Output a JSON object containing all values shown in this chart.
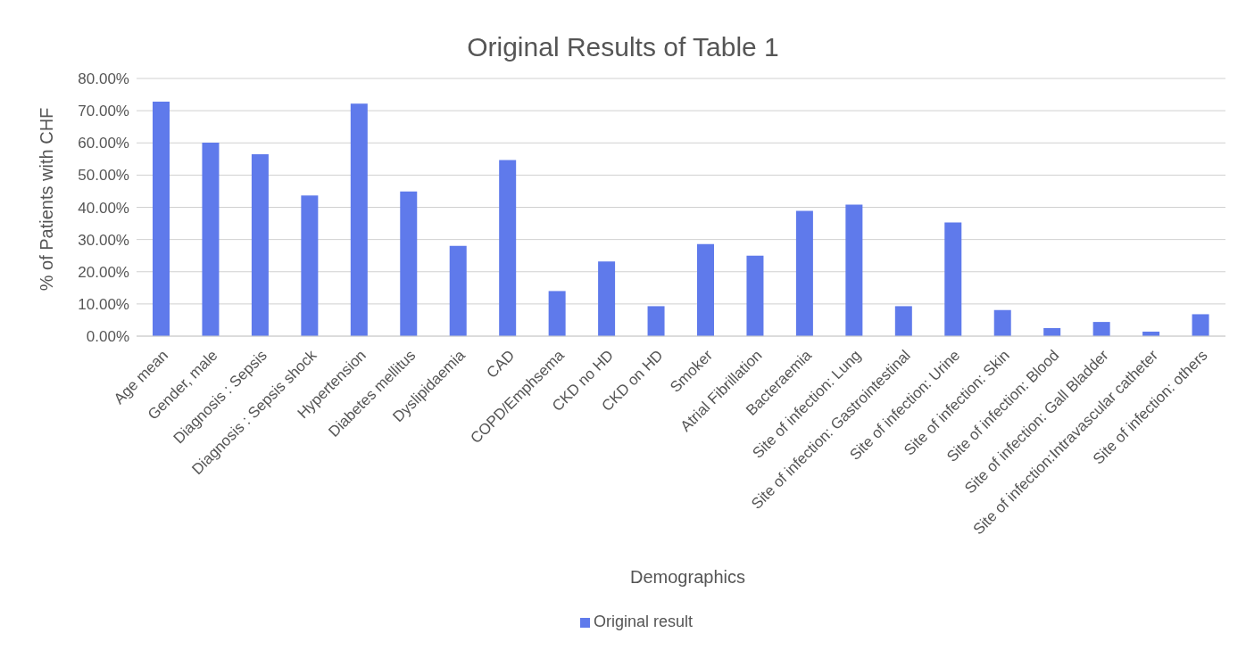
{
  "chart_data": {
    "type": "bar",
    "title": "Original Results of Table 1",
    "xlabel": "Demographics",
    "ylabel": "% of Patients with CHF",
    "categories": [
      "Age mean",
      "Gender, male",
      "Diagnosis : Sepsis",
      "Diagnosis : Sepsis shock",
      "Hypertension",
      "Diabetes mellitus",
      "Dyslipidaemia",
      "CAD",
      "COPD/Emphsema",
      "CKD no HD",
      "CKD on HD",
      "Smoker",
      "Atrial Fibrillation",
      "Bacteraemia",
      "Site of infection: Lung",
      "Site of infection: Gastrointestinal",
      "Site of infection: Urine",
      "Site of infection: Skin",
      "Site of infection: Blood",
      "Site of infection: Gall Bladder",
      "Site of infection:Intravascular catheter",
      "Site of infection: others"
    ],
    "series": [
      {
        "name": "Original result",
        "color": "#5f7aeb",
        "values": [
          72.8,
          60.1,
          56.5,
          43.7,
          72.2,
          44.9,
          28.0,
          54.7,
          14.0,
          23.2,
          9.3,
          28.6,
          25.0,
          38.9,
          40.8,
          9.3,
          35.3,
          8.1,
          2.5,
          4.4,
          1.4,
          6.8
        ]
      }
    ],
    "ylim": [
      0,
      80
    ],
    "yticks": [
      {
        "value": 0,
        "label": "0.00%"
      },
      {
        "value": 10,
        "label": "10.00%"
      },
      {
        "value": 20,
        "label": "20.00%"
      },
      {
        "value": 30,
        "label": "30.00%"
      },
      {
        "value": 40,
        "label": "40.00%"
      },
      {
        "value": 50,
        "label": "50.00%"
      },
      {
        "value": 60,
        "label": "60.00%"
      },
      {
        "value": 70,
        "label": "70.00%"
      },
      {
        "value": 80,
        "label": "80.00%"
      }
    ],
    "grid": "y",
    "legend": "bottom"
  }
}
